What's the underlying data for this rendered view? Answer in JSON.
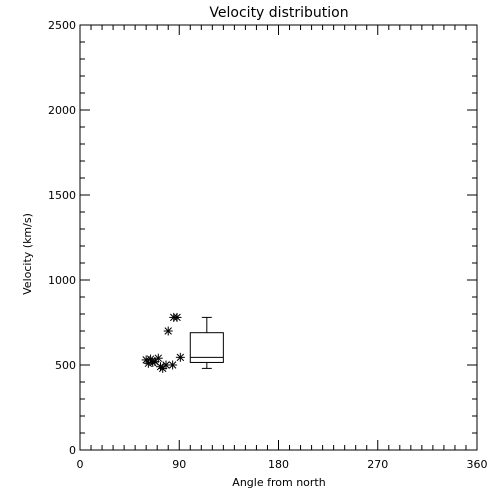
{
  "chart_data": {
    "type": "scatter",
    "title": "Velocity distribution",
    "xlabel": "Angle from north",
    "ylabel": "Velocity (km/s)",
    "xlim": [
      0,
      360
    ],
    "ylim": [
      0,
      2500
    ],
    "xticks": [
      0,
      90,
      180,
      270,
      360
    ],
    "yticks": [
      0,
      500,
      1000,
      1500,
      2000,
      2500
    ],
    "x_minor_step": 10,
    "y_minor_step": 100,
    "grid": false,
    "marker": "asterisk",
    "points": [
      {
        "x": 60,
        "y": 530
      },
      {
        "x": 62,
        "y": 510
      },
      {
        "x": 64,
        "y": 535
      },
      {
        "x": 66,
        "y": 515
      },
      {
        "x": 68,
        "y": 520
      },
      {
        "x": 71,
        "y": 540
      },
      {
        "x": 73,
        "y": 490
      },
      {
        "x": 75,
        "y": 480
      },
      {
        "x": 78,
        "y": 500
      },
      {
        "x": 80,
        "y": 700
      },
      {
        "x": 84,
        "y": 500
      },
      {
        "x": 85,
        "y": 780
      },
      {
        "x": 88,
        "y": 780
      },
      {
        "x": 91,
        "y": 545
      }
    ],
    "boxplot": {
      "x_center": 115,
      "x_width": 30,
      "whisker_low": 480,
      "q1": 515,
      "median": 545,
      "q3": 690,
      "whisker_high": 780
    }
  }
}
